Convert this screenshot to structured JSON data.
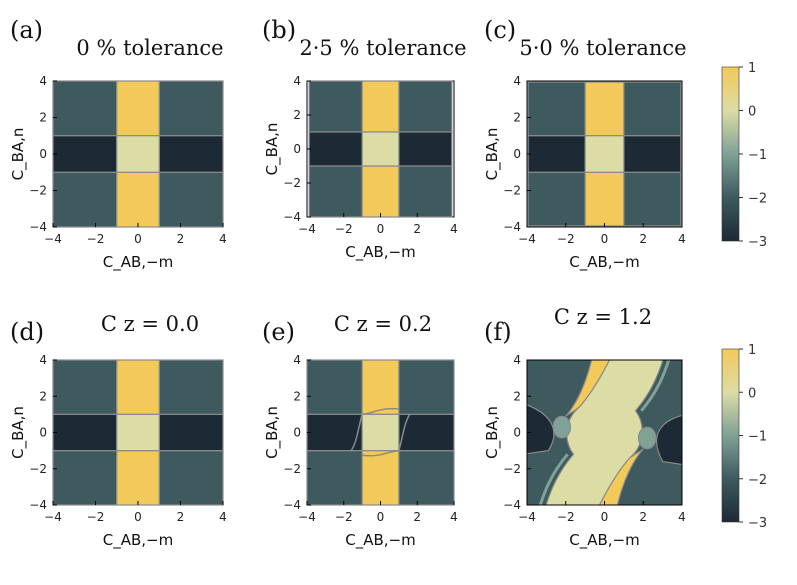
{
  "figure": {
    "colorbar_ticks": [
      "1",
      "0",
      "−1",
      "−2",
      "−3"
    ],
    "colors": {
      "gold": "#F3C95A",
      "pale": "#DCDCA5",
      "slate": "#3F5A5F",
      "navy": "#1B2A35",
      "teal": "#7FA196",
      "border": "#8A8A8A"
    }
  },
  "chart_data": [
    {
      "type": "heatmap",
      "panel": "(a)",
      "title": "0 % tolerance",
      "xlabel": "C_AB,−m",
      "ylabel": "C_BA,n",
      "xlim": [
        -4,
        4
      ],
      "ylim": [
        -4,
        4
      ],
      "xticks": [
        "−4",
        "−2",
        "0",
        "2",
        "4"
      ],
      "yticks": [
        "−4",
        "−2",
        "0",
        "2",
        "4"
      ],
      "value_range": [
        -3,
        1
      ],
      "regions": [
        {
          "where": "|x|<1, |y|>1",
          "value": 0.8
        },
        {
          "where": "|x|<1, |y|<1",
          "value": 0
        },
        {
          "where": "|x|>1, |y|<1",
          "value": -3
        },
        {
          "where": "|x|>1, |y|>1",
          "value": -2
        }
      ]
    },
    {
      "type": "heatmap",
      "panel": "(b)",
      "title": "2·5 % tolerance",
      "xlabel": "C_AB,−m",
      "ylabel": "C_BA,n",
      "xlim": [
        -4,
        4
      ],
      "ylim": [
        -4,
        4
      ],
      "xticks": [
        "−4",
        "−2",
        "0",
        "2",
        "4"
      ],
      "yticks": [
        "−4",
        "−2",
        "0",
        "2",
        "4"
      ],
      "value_range": [
        -3,
        1
      ],
      "regions": [
        {
          "where": "|x|<1, |y|>1",
          "value": 0.8
        },
        {
          "where": "|x|<1, |y|<1",
          "value": 0
        },
        {
          "where": "|x|>1, |y|<1",
          "value": -3
        },
        {
          "where": "|x|>1, |y|>1",
          "value": -2
        }
      ]
    },
    {
      "type": "heatmap",
      "panel": "(c)",
      "title": "5·0 % tolerance",
      "xlabel": "C_AB,−m",
      "ylabel": "C_BA,n",
      "xlim": [
        -4,
        4
      ],
      "ylim": [
        -4,
        4
      ],
      "xticks": [
        "−4",
        "−2",
        "0",
        "2",
        "4"
      ],
      "yticks": [
        "−4",
        "−2",
        "0",
        "2",
        "4"
      ],
      "value_range": [
        -3,
        1
      ],
      "regions": [
        {
          "where": "|x|<1, |y|>1",
          "value": 0.8
        },
        {
          "where": "|x|<1, |y|<1",
          "value": 0
        },
        {
          "where": "|x|>1, |y|<1",
          "value": -3
        },
        {
          "where": "|x|>1, |y|>1",
          "value": -2
        }
      ]
    },
    {
      "type": "heatmap",
      "panel": "(d)",
      "title": "C z = 0.0",
      "c_z": 0.0,
      "xlabel": "C_AB,−m",
      "ylabel": "C_BA,n",
      "xlim": [
        -4,
        4
      ],
      "ylim": [
        -4,
        4
      ],
      "xticks": [
        "−4",
        "−2",
        "0",
        "2",
        "4"
      ],
      "yticks": [
        "−4",
        "−2",
        "0",
        "2",
        "4"
      ],
      "value_range": [
        -3,
        1
      ],
      "regions": [
        {
          "where": "|x|<1, |y|>1",
          "value": 0.8
        },
        {
          "where": "|x|<1, |y|<1",
          "value": 0
        },
        {
          "where": "|x|>1, |y|<1",
          "value": -3
        },
        {
          "where": "|x|>1, |y|>1",
          "value": -2
        }
      ]
    },
    {
      "type": "heatmap",
      "panel": "(e)",
      "title": "C z = 0.2",
      "c_z": 0.2,
      "xlabel": "C_AB,−m",
      "ylabel": "C_BA,n",
      "xlim": [
        -4,
        4
      ],
      "ylim": [
        -4,
        4
      ],
      "xticks": [
        "−4",
        "−2",
        "0",
        "2",
        "4"
      ],
      "yticks": [
        "−4",
        "−2",
        "0",
        "2",
        "4"
      ],
      "value_range": [
        -3,
        1
      ],
      "regions": [
        {
          "where": "|x|<1, |y|>1",
          "value": 0.8
        },
        {
          "where": "|x|<1, |y|<1",
          "value": 0
        },
        {
          "where": "|x|>1, |y|<1",
          "value": -3
        },
        {
          "where": "|x|>1, |y|>1",
          "value": -2
        }
      ]
    },
    {
      "type": "heatmap",
      "panel": "(f)",
      "title": "C z = 1.2",
      "c_z": 1.2,
      "xlabel": "C_AB,−m",
      "ylabel": "C_BA,n",
      "xlim": [
        -4,
        4
      ],
      "ylim": [
        -4,
        4
      ],
      "xticks": [
        "−4",
        "−2",
        "0",
        "2",
        "4"
      ],
      "yticks": [
        "−4",
        "−2",
        "0",
        "2",
        "4"
      ],
      "value_range": [
        -3,
        1
      ],
      "regions": [
        {
          "where": "hyperbolic central region",
          "value": 0
        },
        {
          "where": "upper-left and lower-right arcs",
          "value": 0.8
        },
        {
          "where": "left / right wedges",
          "value": -3
        },
        {
          "where": "outer corners",
          "value": -2
        },
        {
          "where": "small lobes near (±2.2, ±0.3)",
          "value": -1
        }
      ]
    }
  ]
}
